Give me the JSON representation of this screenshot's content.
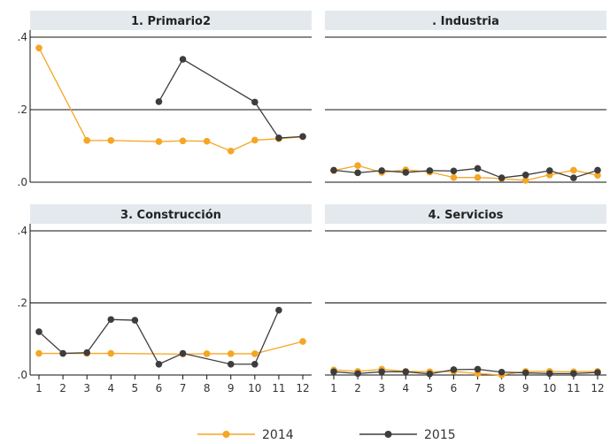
{
  "chart_data": {
    "type": "line",
    "x": [
      1,
      2,
      3,
      4,
      5,
      6,
      7,
      8,
      9,
      10,
      11,
      12
    ],
    "y_ticks": [
      ".0",
      ".2",
      ".4"
    ],
    "ylim": [
      0,
      0.45
    ],
    "xlim": [
      0.8,
      12.2
    ],
    "grid": true,
    "legend_position": "bottom-center",
    "colors": {
      "2014": "#f5a623",
      "2015": "#3d3d3d",
      "header_bg": "#e4e9ee"
    },
    "legend": [
      "2014",
      "2015"
    ],
    "panels": [
      {
        "title": "1. Primario2",
        "series": [
          {
            "name": "2014",
            "values": [
              0.37,
              null,
              0.115,
              0.115,
              null,
              0.112,
              0.114,
              0.113,
              0.086,
              0.116,
              0.12,
              0.125
            ]
          },
          {
            "name": "2015",
            "values": [
              null,
              null,
              null,
              null,
              null,
              0.222,
              0.339,
              null,
              null,
              0.221,
              0.122,
              0.126
            ]
          }
        ]
      },
      {
        "title": ". Industria",
        "series": [
          {
            "name": "2014",
            "values": [
              0.032,
              0.046,
              0.027,
              0.034,
              0.028,
              0.013,
              0.013,
              0.01,
              0.005,
              0.02,
              0.033,
              0.019
            ]
          },
          {
            "name": "2015",
            "values": [
              0.033,
              0.026,
              0.032,
              0.027,
              0.032,
              0.031,
              0.038,
              0.012,
              0.02,
              0.032,
              0.012,
              0.033
            ]
          }
        ]
      },
      {
        "title": "3. Construcción",
        "series": [
          {
            "name": "2014",
            "values": [
              0.06,
              0.06,
              0.06,
              0.06,
              null,
              null,
              0.058,
              0.059,
              0.059,
              0.059,
              null,
              0.093
            ]
          },
          {
            "name": "2015",
            "values": [
              0.12,
              0.06,
              0.062,
              0.154,
              0.152,
              0.03,
              0.06,
              null,
              0.03,
              0.03,
              0.18,
              null
            ]
          }
        ]
      },
      {
        "title": "4. Servicios",
        "series": [
          {
            "name": "2014",
            "values": [
              0.014,
              0.01,
              0.016,
              0.01,
              0.009,
              0.01,
              0.004,
              0.0,
              0.01,
              0.01,
              0.009,
              0.01
            ]
          },
          {
            "name": "2015",
            "values": [
              0.009,
              0.004,
              0.009,
              0.009,
              0.003,
              0.015,
              0.016,
              0.008,
              0.006,
              0.004,
              0.004,
              0.007
            ]
          }
        ]
      }
    ]
  }
}
